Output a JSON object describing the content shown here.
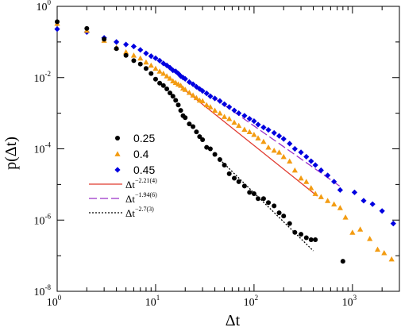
{
  "chart_data": {
    "type": "scatter",
    "xlabel": "Δt",
    "ylabel": "p(Δt)",
    "xscale": "log",
    "yscale": "log",
    "xlim": [
      1,
      3000
    ],
    "ylim": [
      1e-08,
      1
    ],
    "x_ticks": [
      {
        "value": 1,
        "base": "10",
        "exp": "0"
      },
      {
        "value": 10,
        "base": "10",
        "exp": "1"
      },
      {
        "value": 100,
        "base": "10",
        "exp": "2"
      },
      {
        "value": 1000,
        "base": "10",
        "exp": "3"
      }
    ],
    "y_ticks": [
      {
        "value": 1,
        "base": "10",
        "exp": "0"
      },
      {
        "value": 0.01,
        "base": "10",
        "exp": "-2"
      },
      {
        "value": 0.0001,
        "base": "10",
        "exp": "-4"
      },
      {
        "value": 1e-06,
        "base": "10",
        "exp": "-6"
      },
      {
        "value": 1e-08,
        "base": "10",
        "exp": "-8"
      }
    ],
    "legend_position": "center-left",
    "series": [
      {
        "name": "0.25",
        "color": "#000000",
        "marker": "circle",
        "points": [
          [
            1,
            0.37
          ],
          [
            2,
            0.24
          ],
          [
            3,
            0.12
          ],
          [
            4,
            0.065
          ],
          [
            5,
            0.042
          ],
          [
            6,
            0.03
          ],
          [
            7,
            0.024
          ],
          [
            8,
            0.018
          ],
          [
            9,
            0.013
          ],
          [
            10,
            0.009
          ],
          [
            11,
            0.007
          ],
          [
            12,
            0.006
          ],
          [
            13,
            0.0048
          ],
          [
            14,
            0.0037
          ],
          [
            15,
            0.003
          ],
          [
            16,
            0.0023
          ],
          [
            17,
            0.0017
          ],
          [
            18,
            0.0012
          ],
          [
            19,
            0.00085
          ],
          [
            20,
            0.00075
          ],
          [
            22,
            0.0005
          ],
          [
            24,
            0.00042
          ],
          [
            26,
            0.0003
          ],
          [
            28,
            0.00022
          ],
          [
            30,
            0.00018
          ],
          [
            33,
            0.00011
          ],
          [
            36,
            0.0001
          ],
          [
            40,
            7e-05
          ],
          [
            45,
            5e-05
          ],
          [
            50,
            3.5e-05
          ],
          [
            56,
            2e-05
          ],
          [
            63,
            1.5e-05
          ],
          [
            70,
            1.2e-05
          ],
          [
            80,
            9e-06
          ],
          [
            90,
            6e-06
          ],
          [
            100,
            5.5e-06
          ],
          [
            110,
            4e-06
          ],
          [
            125,
            4e-06
          ],
          [
            140,
            3.1e-06
          ],
          [
            160,
            2.5e-06
          ],
          [
            180,
            1.6e-06
          ],
          [
            200,
            1.3e-06
          ],
          [
            230,
            8e-07
          ],
          [
            260,
            4.5e-07
          ],
          [
            300,
            4e-07
          ],
          [
            340,
            3.2e-07
          ],
          [
            380,
            2.8e-07
          ],
          [
            420,
            2.8e-07
          ],
          [
            800,
            7e-08
          ]
        ]
      },
      {
        "name": "0.4",
        "color": "#F39C12",
        "marker": "triangle",
        "points": [
          [
            1,
            0.33
          ],
          [
            2,
            0.21
          ],
          [
            3,
            0.11
          ],
          [
            4,
            0.07
          ],
          [
            5,
            0.052
          ],
          [
            6,
            0.042
          ],
          [
            7,
            0.035
          ],
          [
            8,
            0.027
          ],
          [
            9,
            0.022
          ],
          [
            10,
            0.018
          ],
          [
            11,
            0.015
          ],
          [
            12,
            0.013
          ],
          [
            13,
            0.011
          ],
          [
            14,
            0.0095
          ],
          [
            15,
            0.008
          ],
          [
            16,
            0.0072
          ],
          [
            17,
            0.0065
          ],
          [
            18,
            0.006
          ],
          [
            19,
            0.005
          ],
          [
            20,
            0.0046
          ],
          [
            22,
            0.0038
          ],
          [
            24,
            0.0032
          ],
          [
            26,
            0.0027
          ],
          [
            28,
            0.0023
          ],
          [
            30,
            0.0022
          ],
          [
            33,
            0.0017
          ],
          [
            36,
            0.0015
          ],
          [
            40,
            0.0012
          ],
          [
            45,
            0.001
          ],
          [
            50,
            0.0008
          ],
          [
            56,
            0.0007
          ],
          [
            63,
            0.00055
          ],
          [
            70,
            0.00045
          ],
          [
            80,
            0.00035
          ],
          [
            90,
            0.0003
          ],
          [
            100,
            0.00025
          ],
          [
            110,
            0.0002
          ],
          [
            125,
            0.00016
          ],
          [
            140,
            0.00011
          ],
          [
            160,
            9e-05
          ],
          [
            180,
            8e-05
          ],
          [
            200,
            6e-05
          ],
          [
            230,
            4.5e-05
          ],
          [
            260,
            2.5e-05
          ],
          [
            300,
            1.5e-05
          ],
          [
            340,
            1.2e-05
          ],
          [
            380,
            8e-06
          ],
          [
            420,
            5.5e-06
          ],
          [
            480,
            4.5e-06
          ],
          [
            560,
            3.5e-06
          ],
          [
            650,
            2.8e-06
          ],
          [
            750,
            2.2e-06
          ],
          [
            850,
            1.2e-06
          ],
          [
            1000,
            4.5e-07
          ],
          [
            1200,
            5.5e-07
          ],
          [
            1500,
            3e-07
          ],
          [
            1800,
            1.5e-07
          ],
          [
            2100,
            1.2e-07
          ],
          [
            2500,
            8e-08
          ]
        ]
      },
      {
        "name": "0.45",
        "color": "#0000E0",
        "marker": "diamond",
        "points": [
          [
            1,
            0.23
          ],
          [
            2,
            0.19
          ],
          [
            3,
            0.13
          ],
          [
            4,
            0.1
          ],
          [
            5,
            0.085
          ],
          [
            6,
            0.075
          ],
          [
            7,
            0.06
          ],
          [
            8,
            0.048
          ],
          [
            9,
            0.04
          ],
          [
            10,
            0.035
          ],
          [
            11,
            0.03
          ],
          [
            12,
            0.025
          ],
          [
            13,
            0.022
          ],
          [
            14,
            0.019
          ],
          [
            15,
            0.016
          ],
          [
            16,
            0.015
          ],
          [
            17,
            0.013
          ],
          [
            18,
            0.011
          ],
          [
            19,
            0.01
          ],
          [
            20,
            0.0092
          ],
          [
            22,
            0.0075
          ],
          [
            24,
            0.0065
          ],
          [
            26,
            0.0055
          ],
          [
            28,
            0.0048
          ],
          [
            30,
            0.0042
          ],
          [
            33,
            0.0036
          ],
          [
            36,
            0.003
          ],
          [
            40,
            0.0026
          ],
          [
            45,
            0.0022
          ],
          [
            50,
            0.0018
          ],
          [
            56,
            0.0015
          ],
          [
            63,
            0.0012
          ],
          [
            70,
            0.001
          ],
          [
            80,
            0.00085
          ],
          [
            90,
            0.0007
          ],
          [
            100,
            0.0006
          ],
          [
            110,
            0.00048
          ],
          [
            125,
            0.0004
          ],
          [
            140,
            0.00034
          ],
          [
            160,
            0.00028
          ],
          [
            180,
            0.00023
          ],
          [
            200,
            0.00019
          ],
          [
            230,
            0.00014
          ],
          [
            260,
            0.0001
          ],
          [
            300,
            8e-05
          ],
          [
            340,
            6e-05
          ],
          [
            380,
            4.5e-05
          ],
          [
            420,
            3.5e-05
          ],
          [
            480,
            2.5e-05
          ],
          [
            560,
            1.8e-05
          ],
          [
            650,
            1.2e-05
          ],
          [
            750,
            7e-06
          ],
          [
            1050,
            6e-06
          ],
          [
            1300,
            3.5e-06
          ],
          [
            1600,
            2.8e-06
          ],
          [
            2000,
            1.8e-06
          ],
          [
            2600,
            8e-07
          ]
        ]
      }
    ],
    "fits": [
      {
        "label_base": "Δt",
        "label_exp": "−2.21(4)",
        "color": "#E03A2F",
        "dash": "solid",
        "exponent": -2.21,
        "x_start": 18,
        "x_end": 440,
        "y_start": 0.0055
      },
      {
        "label_base": "Δt",
        "label_exp": "−1.94(6)",
        "color": "#9B30C8",
        "dash": "dashed",
        "exponent": -1.94,
        "x_start": 40,
        "x_end": 750,
        "y_start": 0.0026
      },
      {
        "label_base": "Δt",
        "label_exp": "−2.7(3)",
        "color": "#000000",
        "dash": "dotted",
        "exponent": -2.7,
        "x_start": 45,
        "x_end": 400,
        "y_start": 5e-05
      }
    ]
  }
}
